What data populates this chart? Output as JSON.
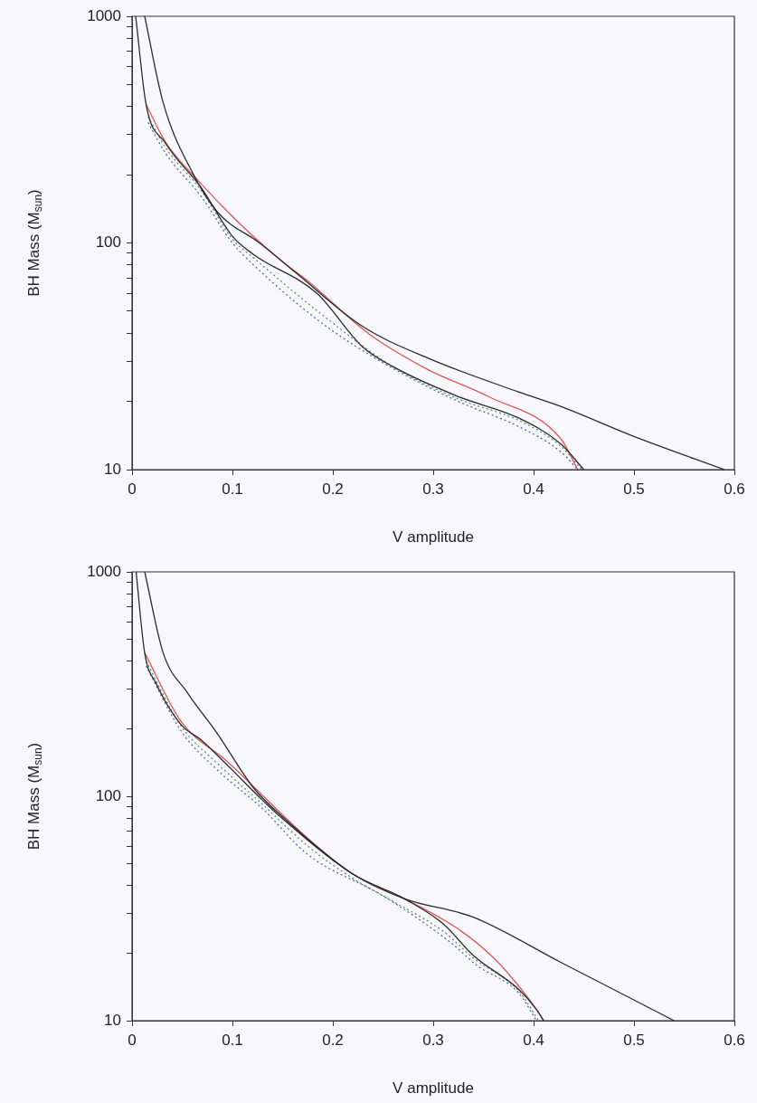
{
  "chart_data": [
    {
      "type": "line",
      "xlabel": "V amplitude",
      "ylabel": "BH Mass (M$_{sun}$)",
      "log": "y",
      "grid": false,
      "marker": "none",
      "xlim": [
        0,
        0.6
      ],
      "xticks": [
        0,
        0.1,
        0.2,
        0.3,
        0.4,
        0.5,
        0.6
      ],
      "ylim": [
        10,
        1000
      ],
      "yticks": [
        10,
        {
          "value": 20,
          "label": null
        },
        {
          "value": 30,
          "label": null
        },
        {
          "value": 40,
          "label": null
        },
        {
          "value": 50,
          "label": null
        },
        {
          "value": 60,
          "label": null
        },
        {
          "value": 70,
          "label": null
        },
        {
          "value": 80,
          "label": null
        },
        {
          "value": 90,
          "label": null
        },
        100,
        {
          "value": 200,
          "label": null
        },
        {
          "value": 300,
          "label": null
        },
        {
          "value": 400,
          "label": null
        },
        {
          "value": 500,
          "label": null
        },
        {
          "value": 600,
          "label": null
        },
        {
          "value": 700,
          "label": null
        },
        {
          "value": 800,
          "label": null
        },
        {
          "value": 900,
          "label": null
        },
        1000
      ],
      "series": [
        {
          "color": "#2b2b2b",
          "line_style": "solid",
          "x": [
            0.0126,
            0.031,
            0.06,
            0.085,
            0.127,
            0.163,
            0.229,
            0.295,
            0.385,
            0.427,
            0.5,
            0.59
          ],
          "values": [
            1000,
            416,
            205,
            137,
            100,
            74,
            43,
            31,
            22,
            19,
            14,
            10
          ]
        },
        {
          "color": "#2b2b2b",
          "line_style": "solid",
          "x": [
            0.0036,
            0.014,
            0.033,
            0.069,
            0.1,
            0.121,
            0.184,
            0.229,
            0.259,
            0.325,
            0.385,
            0.427,
            0.45
          ],
          "values": [
            1000,
            408,
            277,
            175,
            107,
            89,
            60,
            35,
            28.6,
            21,
            16.9,
            13,
            10
          ]
        },
        {
          "color": "#e05555",
          "line_style": "solid",
          "x": [
            0.014,
            0.033,
            0.069,
            0.114,
            0.154,
            0.175,
            0.235,
            0.295,
            0.355,
            0.427,
            0.444
          ],
          "values": [
            408,
            280,
            182,
            114,
            80,
            68,
            40,
            27.6,
            21,
            13.7,
            10
          ]
        },
        {
          "color": "#4f9a5a",
          "line_style": "dotted",
          "x": [
            0.016,
            0.033,
            0.069,
            0.1,
            0.121,
            0.19,
            0.259,
            0.325,
            0.385,
            0.427,
            0.448
          ],
          "values": [
            360,
            265,
            170,
            104,
            86,
            48,
            28.6,
            20.5,
            16.5,
            12.7,
            10
          ]
        },
        {
          "color": "#5566aa",
          "line_style": "dotted",
          "x": [
            0.016,
            0.033,
            0.069,
            0.1,
            0.121,
            0.19,
            0.256,
            0.325,
            0.385,
            0.427,
            0.444
          ],
          "values": [
            340,
            250,
            160,
            100,
            80,
            44,
            28.6,
            20,
            15.5,
            12,
            10
          ]
        }
      ]
    },
    {
      "type": "line",
      "xlabel": "V amplitude",
      "ylabel": "BH Mass (M$_{sun}$)",
      "log": "y",
      "grid": false,
      "marker": "none",
      "xlim": [
        0,
        0.6
      ],
      "xticks": [
        0,
        0.1,
        0.2,
        0.3,
        0.4,
        0.5,
        0.6
      ],
      "ylim": [
        10,
        1000
      ],
      "yticks": [
        10,
        {
          "value": 20,
          "label": null
        },
        {
          "value": 30,
          "label": null
        },
        {
          "value": 40,
          "label": null
        },
        {
          "value": 50,
          "label": null
        },
        {
          "value": 60,
          "label": null
        },
        {
          "value": 70,
          "label": null
        },
        {
          "value": 80,
          "label": null
        },
        {
          "value": 90,
          "label": null
        },
        100,
        {
          "value": 200,
          "label": null
        },
        {
          "value": 300,
          "label": null
        },
        {
          "value": 400,
          "label": null
        },
        {
          "value": 500,
          "label": null
        },
        {
          "value": 600,
          "label": null
        },
        {
          "value": 700,
          "label": null
        },
        {
          "value": 800,
          "label": null
        },
        {
          "value": 900,
          "label": null
        },
        1000
      ],
      "series": [
        {
          "color": "#2b2b2b",
          "line_style": "solid",
          "x": [
            0.0126,
            0.031,
            0.055,
            0.085,
            0.121,
            0.154,
            0.22,
            0.271,
            0.34,
            0.427,
            0.54
          ],
          "values": [
            1000,
            435,
            290,
            190,
            109,
            78,
            45,
            35,
            28.9,
            18.2,
            10
          ]
        },
        {
          "color": "#2b2b2b",
          "line_style": "solid",
          "x": [
            0.004,
            0.0126,
            0.024,
            0.049,
            0.069,
            0.094,
            0.13,
            0.145,
            0.22,
            0.271,
            0.31,
            0.34,
            0.385,
            0.403,
            0.41
          ],
          "values": [
            1000,
            435,
            318,
            208,
            178,
            139,
            96,
            83,
            45,
            35,
            27,
            19.5,
            13.8,
            11.2,
            10
          ]
        },
        {
          "color": "#e05555",
          "line_style": "solid",
          "x": [
            0.0126,
            0.049,
            0.094,
            0.175,
            0.22,
            0.271,
            0.325,
            0.361,
            0.385,
            0.403,
            0.41
          ],
          "values": [
            435,
            215,
            144,
            65,
            45,
            35,
            25.6,
            18.9,
            14.3,
            11.2,
            10
          ]
        },
        {
          "color": "#4f9a5a",
          "line_style": "dotted",
          "x": [
            0.014,
            0.049,
            0.085,
            0.13,
            0.175,
            0.22,
            0.26,
            0.31,
            0.34,
            0.385,
            0.405
          ],
          "values": [
            400,
            205,
            140,
            92,
            60,
            43,
            34,
            25,
            19,
            13.6,
            10
          ]
        },
        {
          "color": "#5566aa",
          "line_style": "dotted",
          "x": [
            0.014,
            0.049,
            0.085,
            0.13,
            0.175,
            0.25,
            0.319,
            0.343,
            0.385,
            0.403
          ],
          "values": [
            380,
            195,
            131,
            88,
            55,
            36,
            22,
            17.7,
            13.3,
            10
          ]
        }
      ]
    }
  ]
}
